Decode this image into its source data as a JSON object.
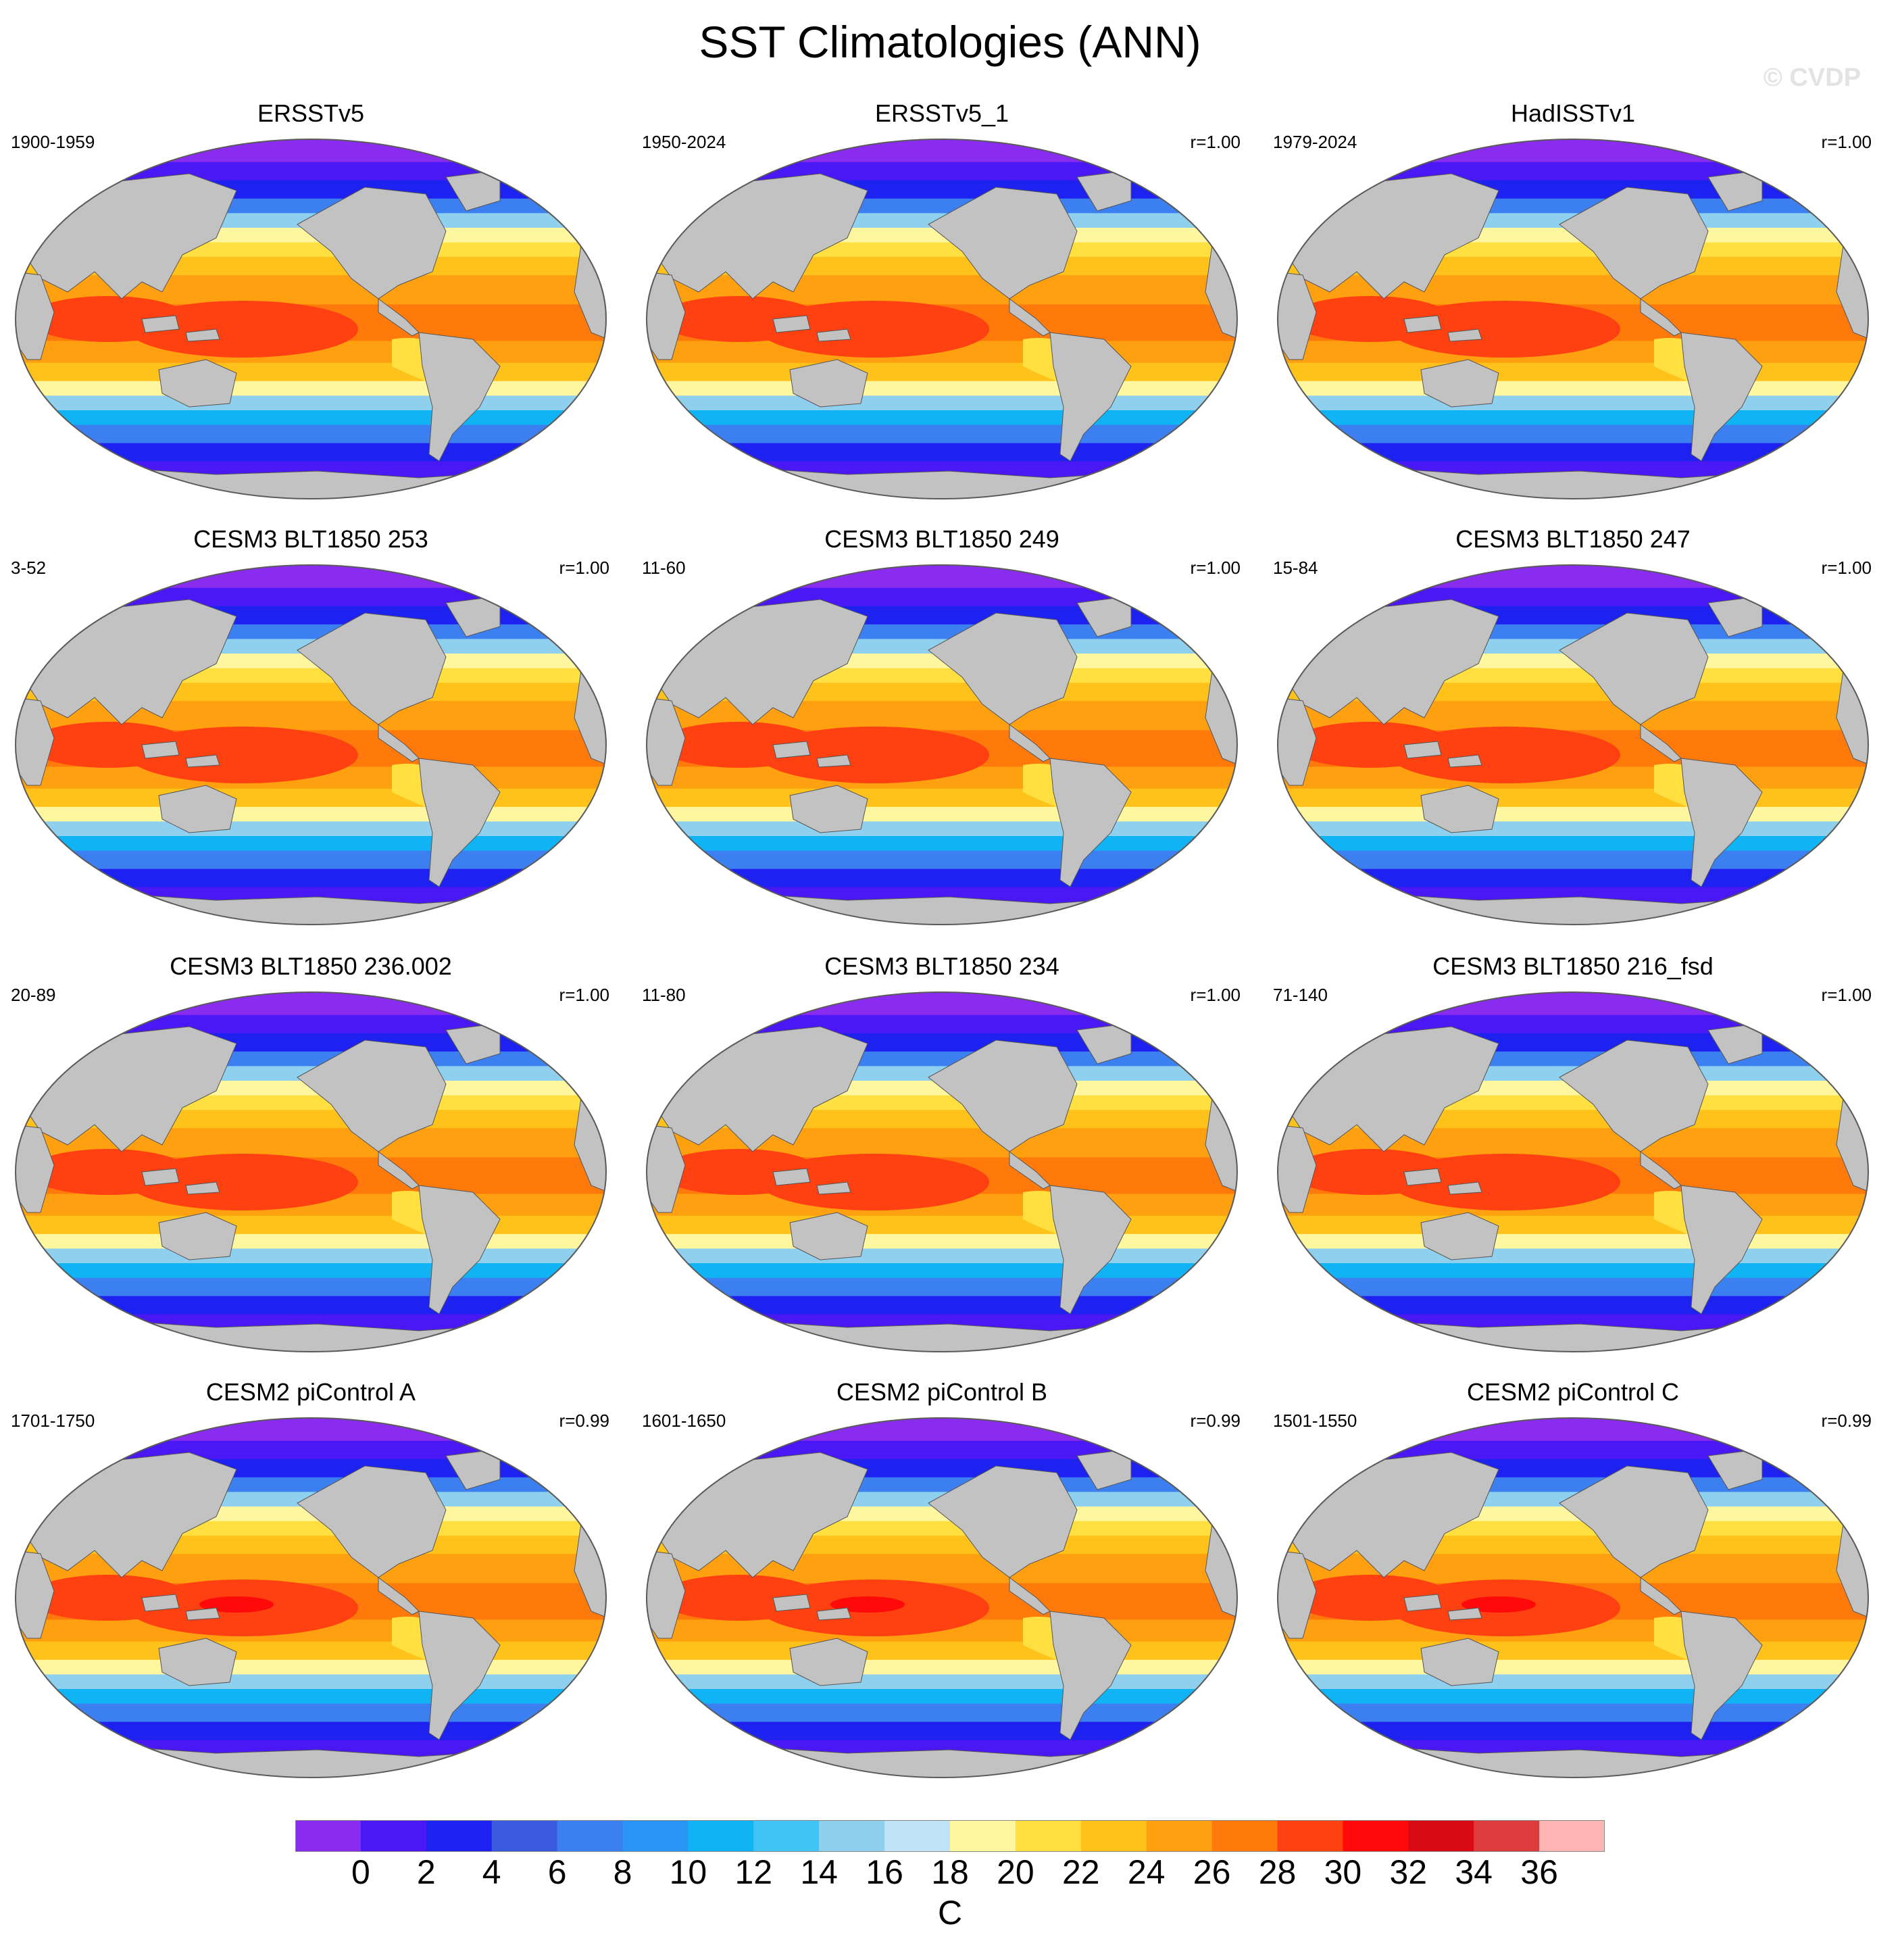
{
  "figure": {
    "title": "SST Climatologies (ANN)",
    "watermark": "© CVDP"
  },
  "panels": [
    {
      "title": "ERSSTv5",
      "period": "1900-1959",
      "corr": ""
    },
    {
      "title": "ERSSTv5_1",
      "period": "1950-2024",
      "corr": "r=1.00"
    },
    {
      "title": "HadISSTv1",
      "period": "1979-2024",
      "corr": "r=1.00"
    },
    {
      "title": "CESM3 BLT1850 253",
      "period": "3-52",
      "corr": "r=1.00"
    },
    {
      "title": "CESM3 BLT1850 249",
      "period": "11-60",
      "corr": "r=1.00"
    },
    {
      "title": "CESM3 BLT1850 247",
      "period": "15-84",
      "corr": "r=1.00"
    },
    {
      "title": "CESM3 BLT1850 236.002",
      "period": "20-89",
      "corr": "r=1.00"
    },
    {
      "title": "CESM3 BLT1850 234",
      "period": "11-80",
      "corr": "r=1.00"
    },
    {
      "title": "CESM3 BLT1850 216_fsd",
      "period": "71-140",
      "corr": "r=1.00"
    },
    {
      "title": "CESM2 piControl A",
      "period": "1701-1750",
      "corr": "r=0.99"
    },
    {
      "title": "CESM2 piControl B",
      "period": "1601-1650",
      "corr": "r=0.99"
    },
    {
      "title": "CESM2 piControl C",
      "period": "1501-1550",
      "corr": "r=0.99"
    }
  ],
  "colorbar": {
    "colors": [
      "#8a2bf0",
      "#4a18f5",
      "#1e22f0",
      "#3a5ae0",
      "#3c7ff0",
      "#2b95f5",
      "#10b4f5",
      "#40c4f5",
      "#8fd0ee",
      "#bfe4f7",
      "#fff6a0",
      "#ffe040",
      "#ffc21a",
      "#ffa010",
      "#ff7a0a",
      "#ff4010",
      "#ff0a0a",
      "#d80a14",
      "#dc3c3c",
      "#ffb4b4"
    ],
    "tick_labels": [
      "0",
      "2",
      "4",
      "6",
      "8",
      "10",
      "12",
      "14",
      "16",
      "18",
      "20",
      "22",
      "24",
      "26",
      "28",
      "30",
      "32",
      "34",
      "36"
    ],
    "unit": "C"
  },
  "map_style": {
    "land_color": "#c2c2c2",
    "ocean_cold": "#8a2bf0",
    "frame_color": "#5a5a5a"
  }
}
